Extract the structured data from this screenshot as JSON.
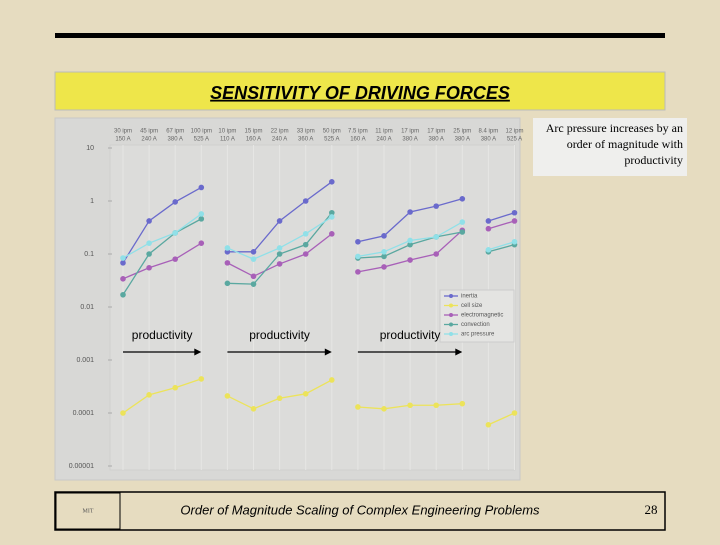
{
  "slide": {
    "title": "SENSITIVITY OF DRIVING FORCES",
    "callout": "Arc pressure increases by an order of magnitude with productivity",
    "footer": "Order of Magnitude Scaling of Complex Engineering Problems",
    "page_number": "28"
  },
  "chart_data": {
    "type": "line",
    "log_scale": true,
    "categories": [
      [
        [
          "30 ipm",
          "150 A"
        ],
        [
          "45 ipm",
          "240 A"
        ],
        [
          "67 ipm",
          "380 A"
        ],
        [
          "100 ipm",
          "525 A"
        ]
      ],
      [
        [
          "10 ipm",
          "110 A"
        ],
        [
          "15 ipm",
          "160 A"
        ],
        [
          "22 ipm",
          "240 A"
        ],
        [
          "33 ipm",
          "360 A"
        ],
        [
          "50 ipm",
          "525 A"
        ]
      ],
      [
        [
          "7.5 ipm",
          "160 A"
        ],
        [
          "11 ipm",
          "240 A"
        ],
        [
          "17 ipm",
          "380 A"
        ],
        [
          "17 ipm",
          "380 A"
        ],
        [
          "25 ipm",
          "380 A"
        ]
      ],
      [
        [
          "8.4 ipm",
          "380 A"
        ],
        [
          "12 ipm",
          "525 A"
        ]
      ]
    ],
    "series": [
      {
        "name": "inertia",
        "color": "#6a6acc",
        "values": [
          [
            0.068,
            0.42,
            0.96,
            1.8
          ],
          [
            0.11,
            0.11,
            0.42,
            1,
            2.3
          ],
          [
            0.17,
            0.22,
            0.62,
            0.8,
            1.1
          ],
          [
            0.42,
            0.6
          ]
        ]
      },
      {
        "name": "cell size",
        "color": "#ece35a",
        "values": [
          [
            0.0001,
            0.00022,
            0.0003,
            0.00044
          ],
          [
            0.00021,
            0.00012,
            0.00019,
            0.00023,
            0.00042
          ],
          [
            0.00013,
            0.00012,
            0.00014,
            0.00014,
            0.00015
          ],
          [
            6e-05,
            0.0001
          ]
        ]
      },
      {
        "name": "electromagnetic",
        "color": "#a860b8",
        "values": [
          [
            0.034,
            0.055,
            0.08,
            0.16
          ],
          [
            0.068,
            0.038,
            0.065,
            0.1,
            0.24
          ],
          [
            0.046,
            0.057,
            0.077,
            0.1,
            0.28
          ],
          [
            0.3,
            0.42
          ]
        ]
      },
      {
        "name": "convection",
        "color": "#5aa8a0",
        "values": [
          [
            0.017,
            0.1,
            0.25,
            0.46
          ],
          [
            0.028,
            0.027,
            0.1,
            0.15,
            0.6
          ],
          [
            0.084,
            0.09,
            0.15,
            0.21,
            0.26
          ],
          [
            0.11,
            0.15
          ]
        ]
      },
      {
        "name": "arc pressure",
        "color": "#90e0e8",
        "values": [
          [
            0.084,
            0.16,
            0.25,
            0.57
          ],
          [
            0.13,
            0.08,
            0.13,
            0.24,
            0.5
          ],
          [
            0.09,
            0.11,
            0.18,
            0.21,
            0.4
          ],
          [
            0.12,
            0.17
          ]
        ]
      }
    ],
    "ylim": [
      1e-05,
      10
    ],
    "yticks": [
      10,
      1,
      0.1,
      0.01,
      0.001,
      0.0001,
      1e-05
    ],
    "annotations": [
      "productivity",
      "productivity",
      "productivity"
    ],
    "legend": "lower right"
  }
}
